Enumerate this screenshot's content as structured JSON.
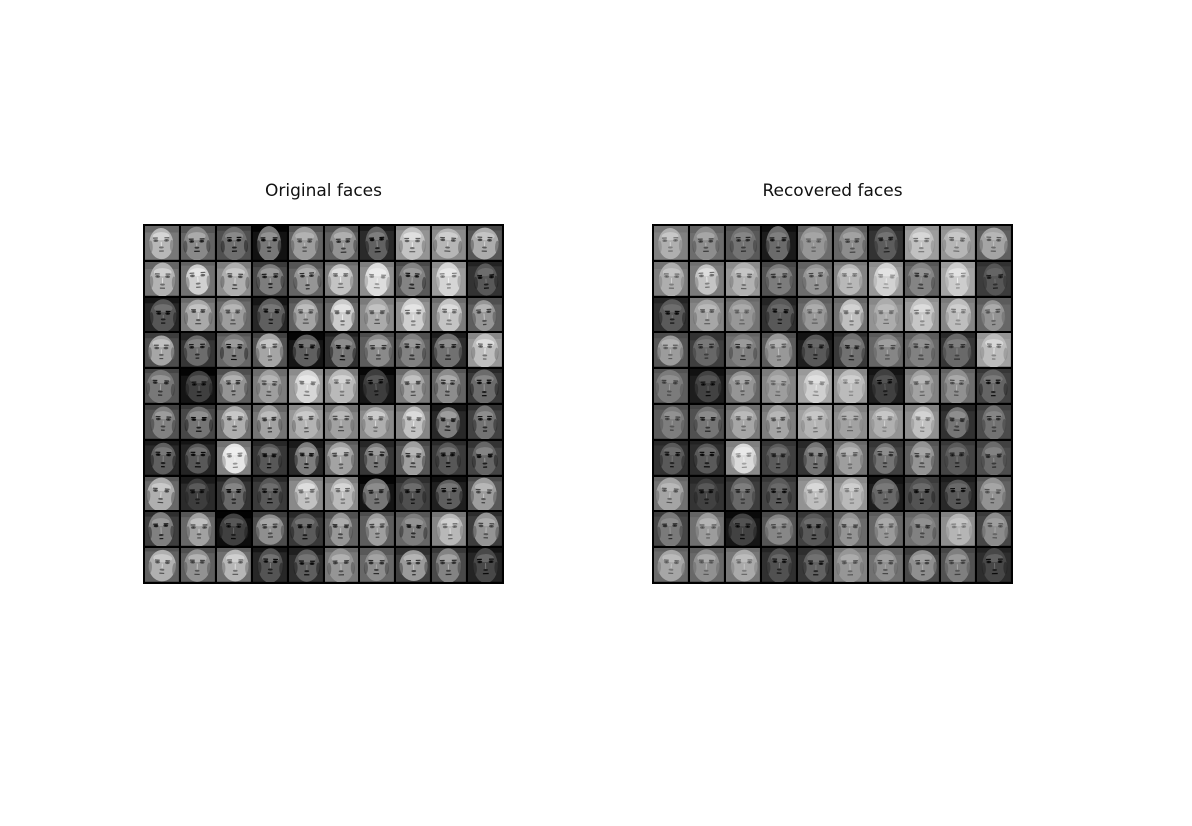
{
  "figure": {
    "panels": [
      {
        "id": "original",
        "title": "Original faces",
        "rows": 10,
        "cols": 10,
        "tone": "contrast"
      },
      {
        "id": "recovered",
        "title": "Recovered faces",
        "rows": 10,
        "cols": 10,
        "tone": "smooth"
      }
    ],
    "colors": {
      "background": "#ffffff",
      "grid_border": "#000000",
      "title_text": "#111111"
    }
  }
}
